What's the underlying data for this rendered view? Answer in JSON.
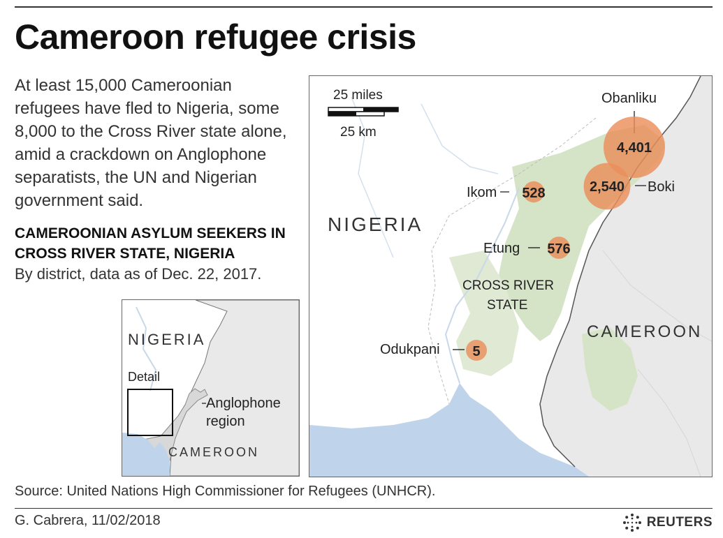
{
  "header": {
    "title": "Cameroon refugee crisis",
    "intro": "At least 15,000 Cameroonian refugees have fled to Nigeria, some 8,000 to the Cross River state alone, amid a crackdown on Anglophone separatists, the UN and Nigerian government said.",
    "subhead": "CAMEROONIAN ASYLUM SEEKERS IN CROSS RIVER STATE, NIGERIA",
    "as_of": "By district, data as of Dec. 22, 2017."
  },
  "inset": {
    "country_nigeria": "NIGERIA",
    "detail_label": "Detail",
    "region_label_line1": "Anglophone",
    "region_label_line2": "region",
    "country_cameroon": "CAMEROON"
  },
  "map": {
    "scale_miles": "25 miles",
    "scale_km": "25 km",
    "country_nigeria": "NIGERIA",
    "country_cameroon": "CAMEROON",
    "state_line1": "CROSS RIVER",
    "state_line2": "STATE"
  },
  "districts": [
    {
      "name": "Obanliku",
      "value": 4401,
      "label": "4,401"
    },
    {
      "name": "Boki",
      "value": 2540,
      "label": "2,540"
    },
    {
      "name": "Ikom",
      "value": 528,
      "label": "528"
    },
    {
      "name": "Etung",
      "value": 576,
      "label": "576"
    },
    {
      "name": "Odukpani",
      "value": 5,
      "label": "5"
    }
  ],
  "colors": {
    "bubble": "#ea8f5b",
    "land_nigeria": "#ffffff",
    "land_cameroon": "#e9e9e9",
    "forest": "#d5e3c6",
    "water": "#bfd4ea",
    "anglophone": "#d8d8d8"
  },
  "footer": {
    "source": "Source: United Nations High Commissioner for Refugees (UNHCR).",
    "credit": "G. Cabrera, 11/02/2018",
    "brand": "REUTERS"
  }
}
